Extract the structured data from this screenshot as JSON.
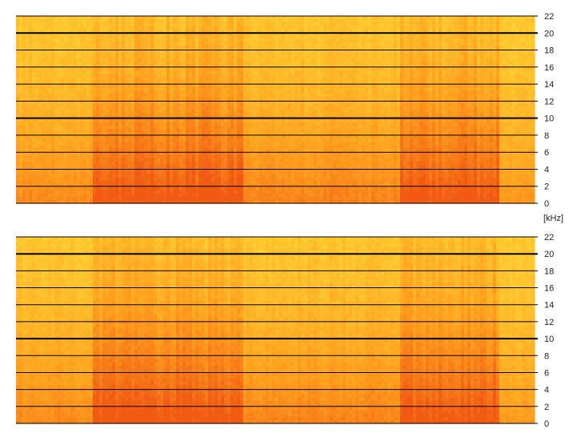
{
  "chart_data": [
    {
      "type": "heatmap",
      "channel": "top",
      "yunit_label": "",
      "ylim": [
        0,
        22
      ],
      "yticks": [
        "22",
        "20",
        "18",
        "16",
        "14",
        "12",
        "10",
        "8",
        "6",
        "4",
        "2",
        "0"
      ],
      "major_lines": [
        10,
        20
      ],
      "colors": {
        "low": "#ffe23a",
        "mid": "#ffa11f",
        "high": "#f05a13"
      },
      "time_segments": [
        {
          "start": 0.0,
          "end": 0.15,
          "energy": 0.35
        },
        {
          "start": 0.15,
          "end": 0.44,
          "energy": 0.8
        },
        {
          "start": 0.44,
          "end": 0.74,
          "energy": 0.4
        },
        {
          "start": 0.74,
          "end": 0.93,
          "energy": 0.78
        },
        {
          "start": 0.93,
          "end": 1.0,
          "energy": 0.22
        }
      ]
    },
    {
      "type": "heatmap",
      "channel": "bottom",
      "yunit_label": "[kHz]",
      "ylim": [
        0,
        22
      ],
      "yticks": [
        "22",
        "20",
        "18",
        "16",
        "14",
        "12",
        "10",
        "8",
        "6",
        "4",
        "2",
        "0"
      ],
      "major_lines": [
        10,
        20
      ],
      "colors": {
        "low": "#ffe23a",
        "mid": "#ffa11f",
        "high": "#f05a13"
      },
      "time_segments": [
        {
          "start": 0.0,
          "end": 0.15,
          "energy": 0.35
        },
        {
          "start": 0.15,
          "end": 0.44,
          "energy": 0.78
        },
        {
          "start": 0.44,
          "end": 0.74,
          "energy": 0.4
        },
        {
          "start": 0.74,
          "end": 0.93,
          "energy": 0.76
        },
        {
          "start": 0.93,
          "end": 1.0,
          "energy": 0.22
        }
      ]
    }
  ]
}
